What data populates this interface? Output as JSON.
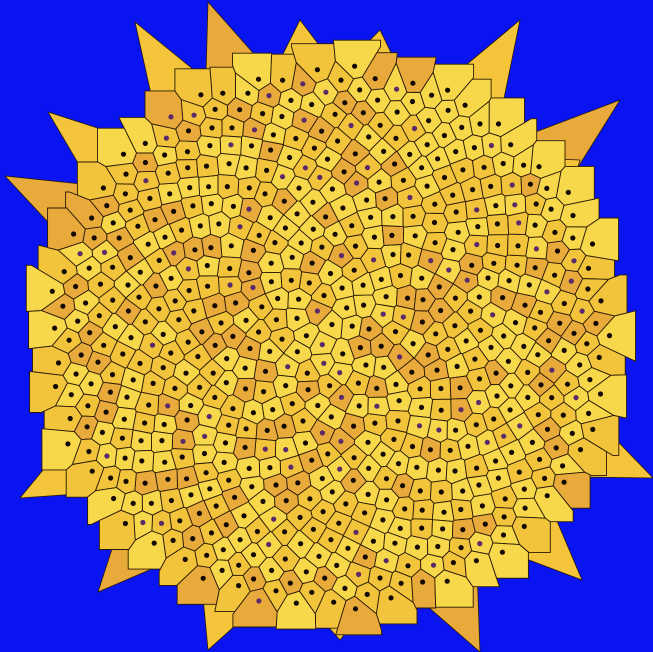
{
  "scene": {
    "subject": "voronoi-sunflower",
    "colors": {
      "background": "#0a14f0",
      "cell_light": "#f7d84a",
      "cell_mid": "#f2c43c",
      "cell_dark": "#e9aa3c",
      "spike_fill": "#f4c53a",
      "cell_outline": "#2a1a05",
      "seed": "#140a05",
      "seed_alt": "#5a2a6a"
    },
    "pattern": {
      "seed_count": 620,
      "spiral_angle_deg": 137.508,
      "spike_count": 21
    }
  }
}
